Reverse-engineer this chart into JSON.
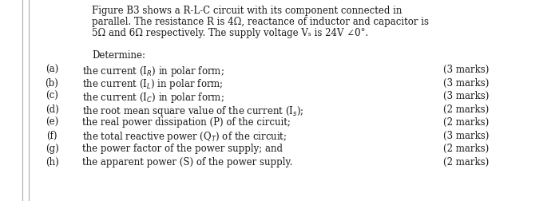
{
  "bg_color": "#ffffff",
  "text_color": "#1a1a1a",
  "left_line_color": "#aaaaaa",
  "para_lines": [
    "Figure B3 shows a R-L-C circuit with its component connected in",
    "parallel. The resistance R is 4Ω, reactance of inductor and capacitor is",
    "5Ω and 6Ω respectively. The supply voltage Vₛ is 24V ∠0°."
  ],
  "determine_label": "Determine:",
  "items": [
    {
      "label": "(a)",
      "text": "the current (I",
      "sub": "R",
      "text2": ") in polar form;",
      "marks": "(3 marks)"
    },
    {
      "label": "(b)",
      "text": "the current (I",
      "sub": "L",
      "text2": ") in polar form;",
      "marks": "(3 marks)"
    },
    {
      "label": "(c)",
      "text": "the current (I",
      "sub": "C",
      "text2": ") in polar form;",
      "marks": "(3 marks)"
    },
    {
      "label": "(d)",
      "text": "the root mean square value of the current (I",
      "sub": "s",
      "text2": ");",
      "marks": "(2 marks)"
    },
    {
      "label": "(e)",
      "text": "the real power dissipation (P) of the circuit;",
      "sub": "",
      "text2": "",
      "marks": "(2 marks)"
    },
    {
      "label": "(f)",
      "text": "the total reactive power (Q",
      "sub": "T",
      "text2": ") of the circuit;",
      "marks": "(3 marks)"
    },
    {
      "label": "(g)",
      "text": "the power factor of the power supply; and",
      "sub": "",
      "text2": "",
      "marks": "(2 marks)"
    },
    {
      "label": "(h)",
      "text": "the apparent power (S) of the power supply.",
      "sub": "",
      "text2": "",
      "marks": "(2 marks)"
    }
  ],
  "figsize": [
    7.0,
    2.52
  ],
  "dpi": 100
}
